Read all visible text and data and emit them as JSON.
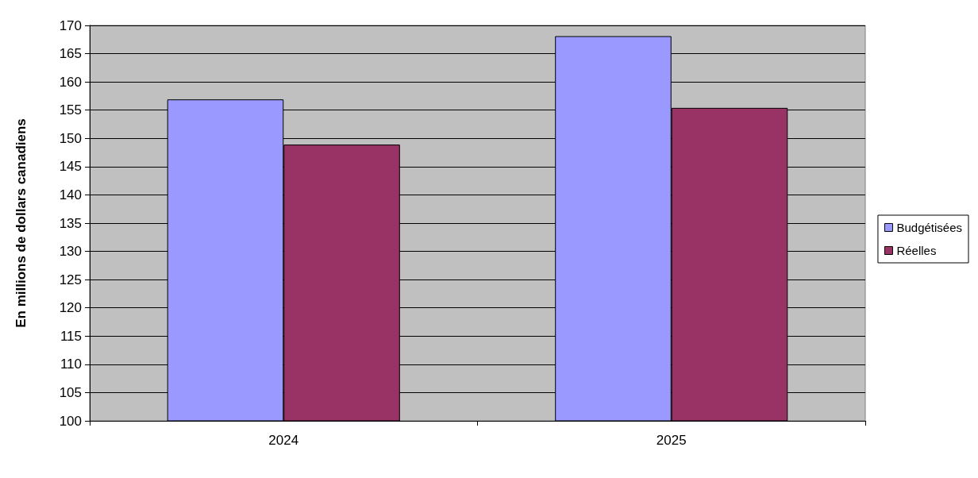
{
  "chart_data": {
    "type": "bar",
    "ylabel": "En millions de dollars canadiens",
    "categories": [
      "2024",
      "2025"
    ],
    "series": [
      {
        "name": "Budgétisées",
        "color": "#9999ff",
        "values": [
          156.9,
          168.1
        ]
      },
      {
        "name": "Réelles",
        "color": "#993366",
        "values": [
          148.9,
          155.4
        ]
      }
    ],
    "ylim": [
      100,
      170
    ],
    "yticks": [
      100,
      105,
      110,
      115,
      120,
      125,
      130,
      135,
      140,
      145,
      150,
      155,
      160,
      165,
      170
    ],
    "grid": "y",
    "legend": "right"
  }
}
